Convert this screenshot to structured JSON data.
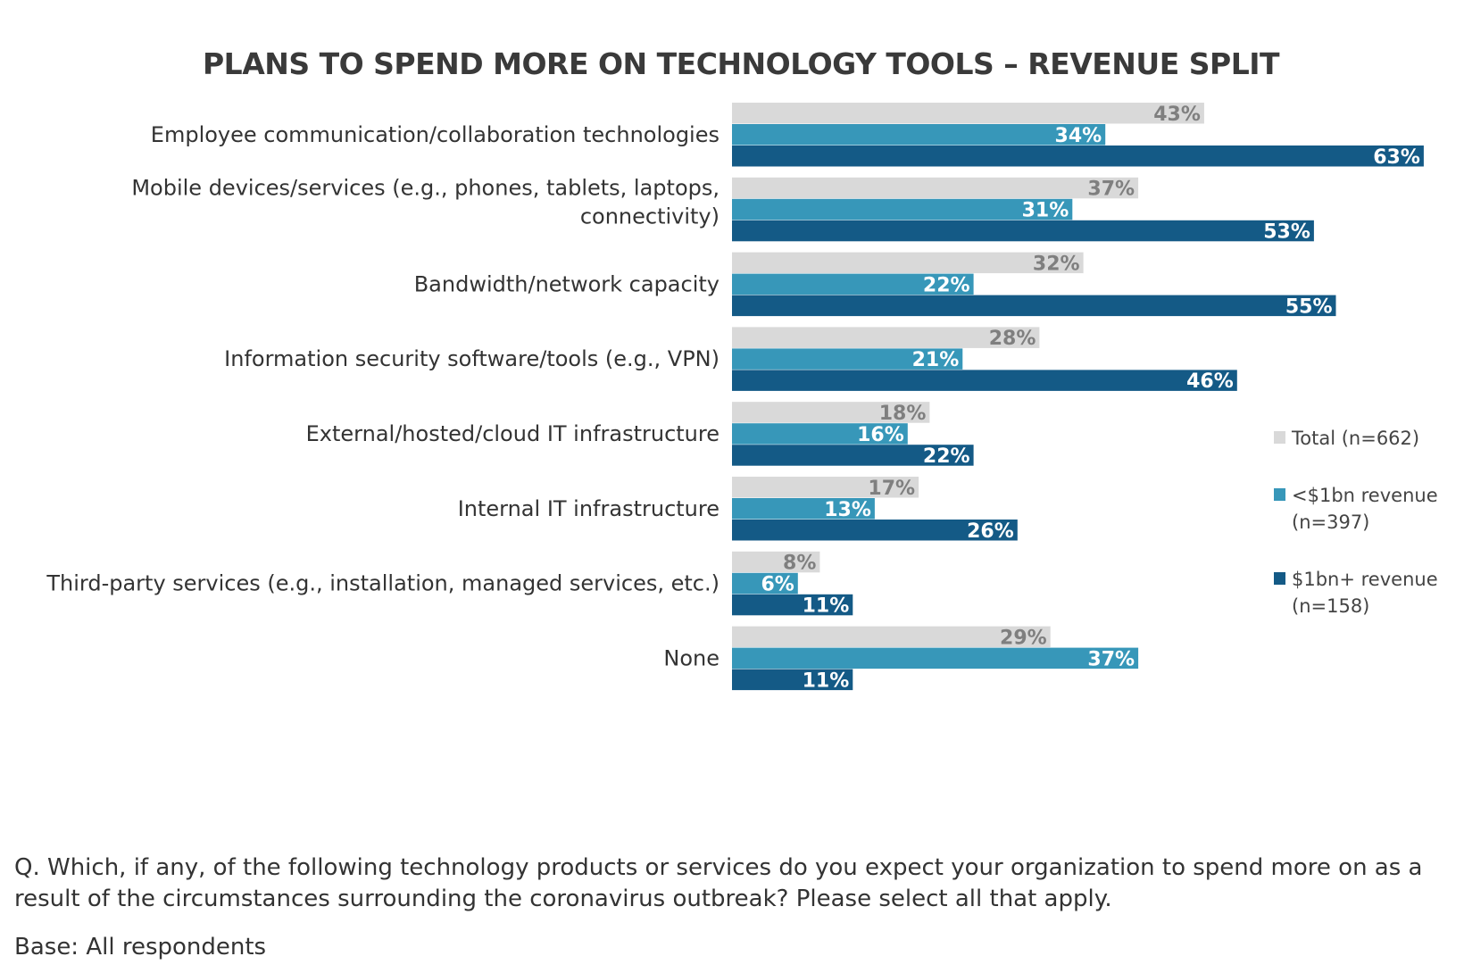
{
  "chart_data": {
    "type": "bar",
    "orientation": "horizontal",
    "title": "PLANS TO SPEND MORE ON TECHNOLOGY TOOLS – REVENUE SPLIT",
    "categories": [
      [
        "Employee communication/collaboration technologies"
      ],
      [
        "Mobile devices/services (e.g., phones, tablets, laptops,",
        "connectivity)"
      ],
      [
        "Bandwidth/network capacity"
      ],
      [
        "Information security software/tools (e.g., VPN)"
      ],
      [
        "External/hosted/cloud IT infrastructure"
      ],
      [
        "Internal IT infrastructure"
      ],
      [
        "Third-party services (e.g., installation, managed services, etc.)"
      ],
      [
        "None"
      ]
    ],
    "series": [
      {
        "name": "Total (n=662)",
        "legend_lines": [
          "Total (n=662)"
        ],
        "color": "#d9d9d9",
        "label_color": "#7f7f7f",
        "values": [
          43,
          37,
          32,
          28,
          18,
          17,
          8,
          29
        ]
      },
      {
        "name": "<$1bn revenue (n=397)",
        "legend_lines": [
          "<$1bn revenue",
          "(n=397)"
        ],
        "color": "#3797b9",
        "label_color": "#ffffff",
        "values": [
          34,
          31,
          22,
          21,
          16,
          13,
          6,
          37
        ]
      },
      {
        "name": "$1bn+ revenue (n=158)",
        "legend_lines": [
          "$1bn+ revenue",
          "(n=158)"
        ],
        "color": "#145a86",
        "label_color": "#ffffff",
        "values": [
          63,
          53,
          55,
          46,
          22,
          26,
          11,
          11
        ]
      }
    ],
    "value_suffix": "%",
    "xlim": [
      0,
      70
    ],
    "legend_position": "right",
    "grid": false
  },
  "footnotes": {
    "question": "Q. Which, if any, of the following technology products or services do you expect your organization to spend more on as a result of the circumstances surrounding the coronavirus outbreak? Please select all that apply.",
    "base": "Base: All respondents"
  }
}
